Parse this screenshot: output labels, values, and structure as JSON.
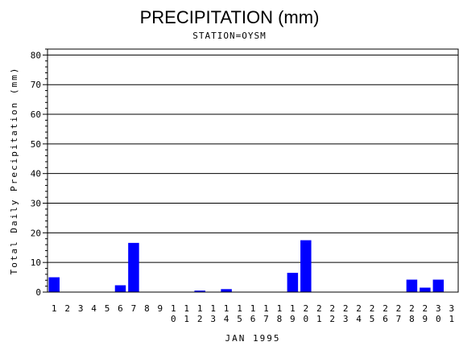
{
  "chart_data": {
    "type": "bar",
    "title": "PRECIPITATION (mm)",
    "subtitle": "STATION=OYSM",
    "xlabel": "JAN 1995",
    "ylabel": "Total Daily Precipitation (mm)",
    "ylim": [
      0,
      82
    ],
    "yticks": [
      0,
      10,
      20,
      30,
      40,
      50,
      60,
      70,
      80
    ],
    "grid": true,
    "bar_color": "#0000ff",
    "categories": [
      "1",
      "2",
      "3",
      "4",
      "5",
      "6",
      "7",
      "8",
      "9",
      "10",
      "11",
      "12",
      "13",
      "14",
      "15",
      "16",
      "17",
      "18",
      "19",
      "20",
      "21",
      "22",
      "23",
      "24",
      "25",
      "26",
      "27",
      "28",
      "29",
      "30",
      "31"
    ],
    "values": [
      5.0,
      0,
      0,
      0,
      0,
      2.3,
      16.6,
      0,
      0,
      0,
      0,
      0.5,
      0,
      1.0,
      0,
      0,
      0,
      0,
      6.5,
      17.5,
      0,
      0,
      0,
      0,
      0,
      0,
      0,
      4.2,
      1.5,
      4.2,
      0
    ]
  }
}
